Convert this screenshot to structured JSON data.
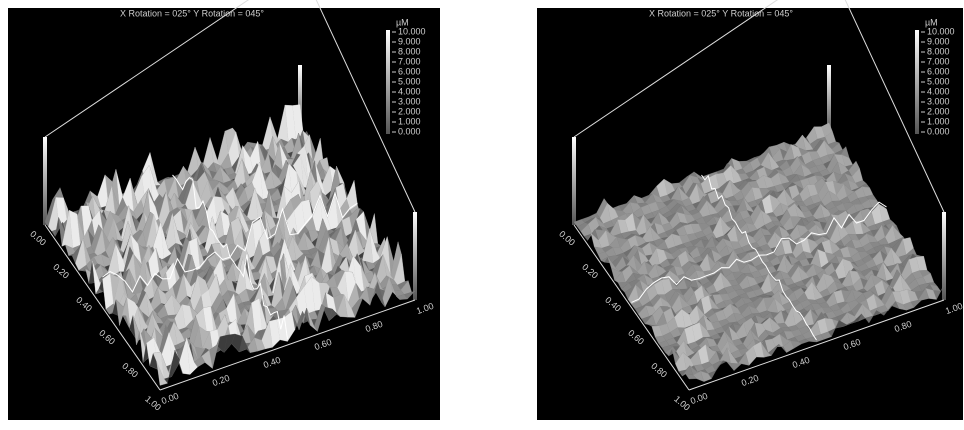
{
  "panels": [
    {
      "header": "X Rotation = 025°   Y Rotation = 045°",
      "unit": "µM",
      "scale_labels": [
        "10.000",
        "9.000",
        "8.000",
        "7.000",
        "6.000",
        "5.000",
        "4.000",
        "3.000",
        "2.000",
        "1.000",
        "0.000"
      ],
      "axis_left": [
        "0.00",
        "0.20",
        "0.40",
        "0.60",
        "0.80",
        "1.00"
      ],
      "axis_front": [
        "0.00",
        "0.20",
        "0.40",
        "0.60",
        "0.80",
        "1.00"
      ]
    },
    {
      "header": "X Rotation = 025°   Y Rotation = 045°",
      "unit": "µM",
      "scale_labels": [
        "10.000",
        "9.000",
        "8.000",
        "7.000",
        "6.000",
        "5.000",
        "4.000",
        "3.000",
        "2.000",
        "1.000",
        "0.000"
      ],
      "axis_left": [
        "0.00",
        "0.20",
        "0.40",
        "0.60",
        "0.80",
        "1.00"
      ],
      "axis_front": [
        "0.00",
        "0.20",
        "0.40",
        "0.60",
        "0.80",
        "1.00"
      ]
    }
  ]
}
